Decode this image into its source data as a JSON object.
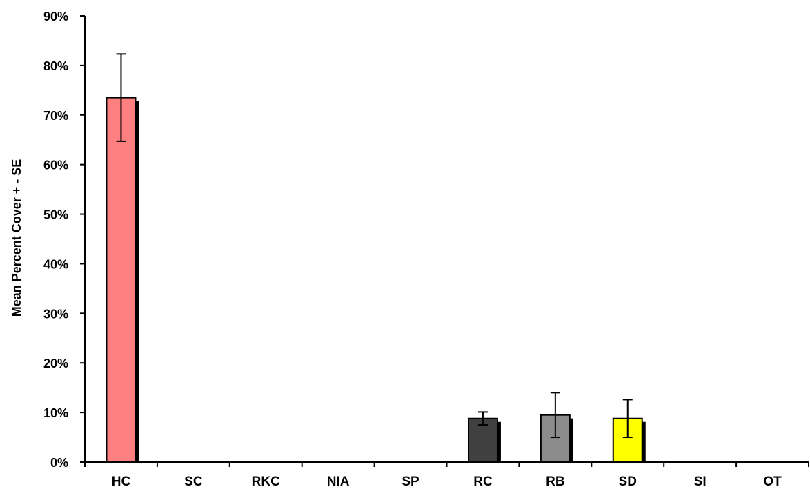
{
  "chart_data": {
    "type": "bar",
    "title": "",
    "xlabel": "",
    "ylabel": "Mean Percent Cover + - SE",
    "ylim": [
      0,
      90
    ],
    "ytick_step": 10,
    "ytick_suffix": "%",
    "grid": false,
    "legend": "none",
    "categories": [
      "HC",
      "SC",
      "RKC",
      "NIA",
      "SP",
      "RC",
      "RB",
      "SD",
      "SI",
      "OT"
    ],
    "values": [
      73.5,
      0,
      0,
      0,
      0,
      8.8,
      9.5,
      8.8,
      0,
      0
    ],
    "errors": [
      8.8,
      0,
      0,
      0,
      0,
      1.3,
      4.5,
      3.8,
      0,
      0
    ],
    "colors": [
      "#ff8080",
      null,
      null,
      null,
      null,
      "#404040",
      "#8c8c8c",
      "#ffff00",
      null,
      null
    ],
    "shadow_color": "#000000",
    "axis_color": "#000000"
  }
}
